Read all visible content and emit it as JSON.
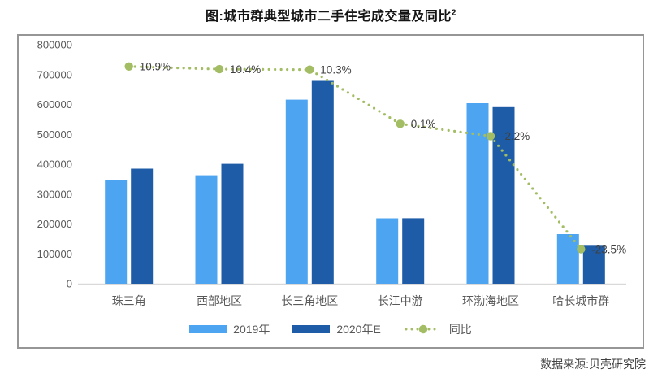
{
  "title": {
    "text": "图:城市群典型城市二手住宅成交量及同比",
    "superscript": "2"
  },
  "source": {
    "text": "数据来源:贝壳研究院"
  },
  "colors": {
    "bar_2019": "#4da4f0",
    "bar_2020e": "#1e5ca8",
    "yoy_line": "#a2bd63",
    "axis_label": "#595959",
    "data_label": "#404040",
    "axis_line": "#d9d9d9",
    "border": "#969696",
    "title": "#141414",
    "source": "#3f3f3f",
    "background": "#ffffff"
  },
  "chart_data": {
    "type": "bar",
    "subtype": "grouped-bars-with-line",
    "categories": [
      "珠三角",
      "西部地区",
      "长三角地区",
      "长江中游",
      "环渤海地区",
      "哈长城市群"
    ],
    "series": [
      {
        "key": "2019",
        "name": "2019年",
        "type": "bar",
        "color": "#4da4f0",
        "values": [
          347000,
          363000,
          616000,
          219000,
          604000,
          166000
        ]
      },
      {
        "key": "2020e",
        "name": "2020年E",
        "type": "bar",
        "color": "#1e5ca8",
        "values": [
          385000,
          401000,
          679000,
          219200,
          591000,
          127000
        ]
      },
      {
        "key": "yoy",
        "name": "同比",
        "type": "line",
        "color": "#a2bd63",
        "axis": "secondary",
        "values": [
          10.9,
          10.4,
          10.3,
          0.1,
          -2.2,
          -23.5
        ],
        "labels": [
          "10.9%",
          "10.4%",
          "10.3%",
          "0.1%",
          "-2.2%",
          "-23.5%"
        ]
      }
    ],
    "y_axis": {
      "min": 0,
      "max": 800000,
      "tick_labels": [
        "0",
        "100000",
        "200000",
        "300000",
        "400000",
        "500000",
        "600000",
        "700000",
        "800000"
      ]
    },
    "secondary_y_axis": {
      "min": -30,
      "max": 15,
      "visible": false
    },
    "legend": {
      "position": "bottom",
      "entries": [
        "2019年",
        "2020年E",
        "同比"
      ]
    },
    "grid": false
  }
}
